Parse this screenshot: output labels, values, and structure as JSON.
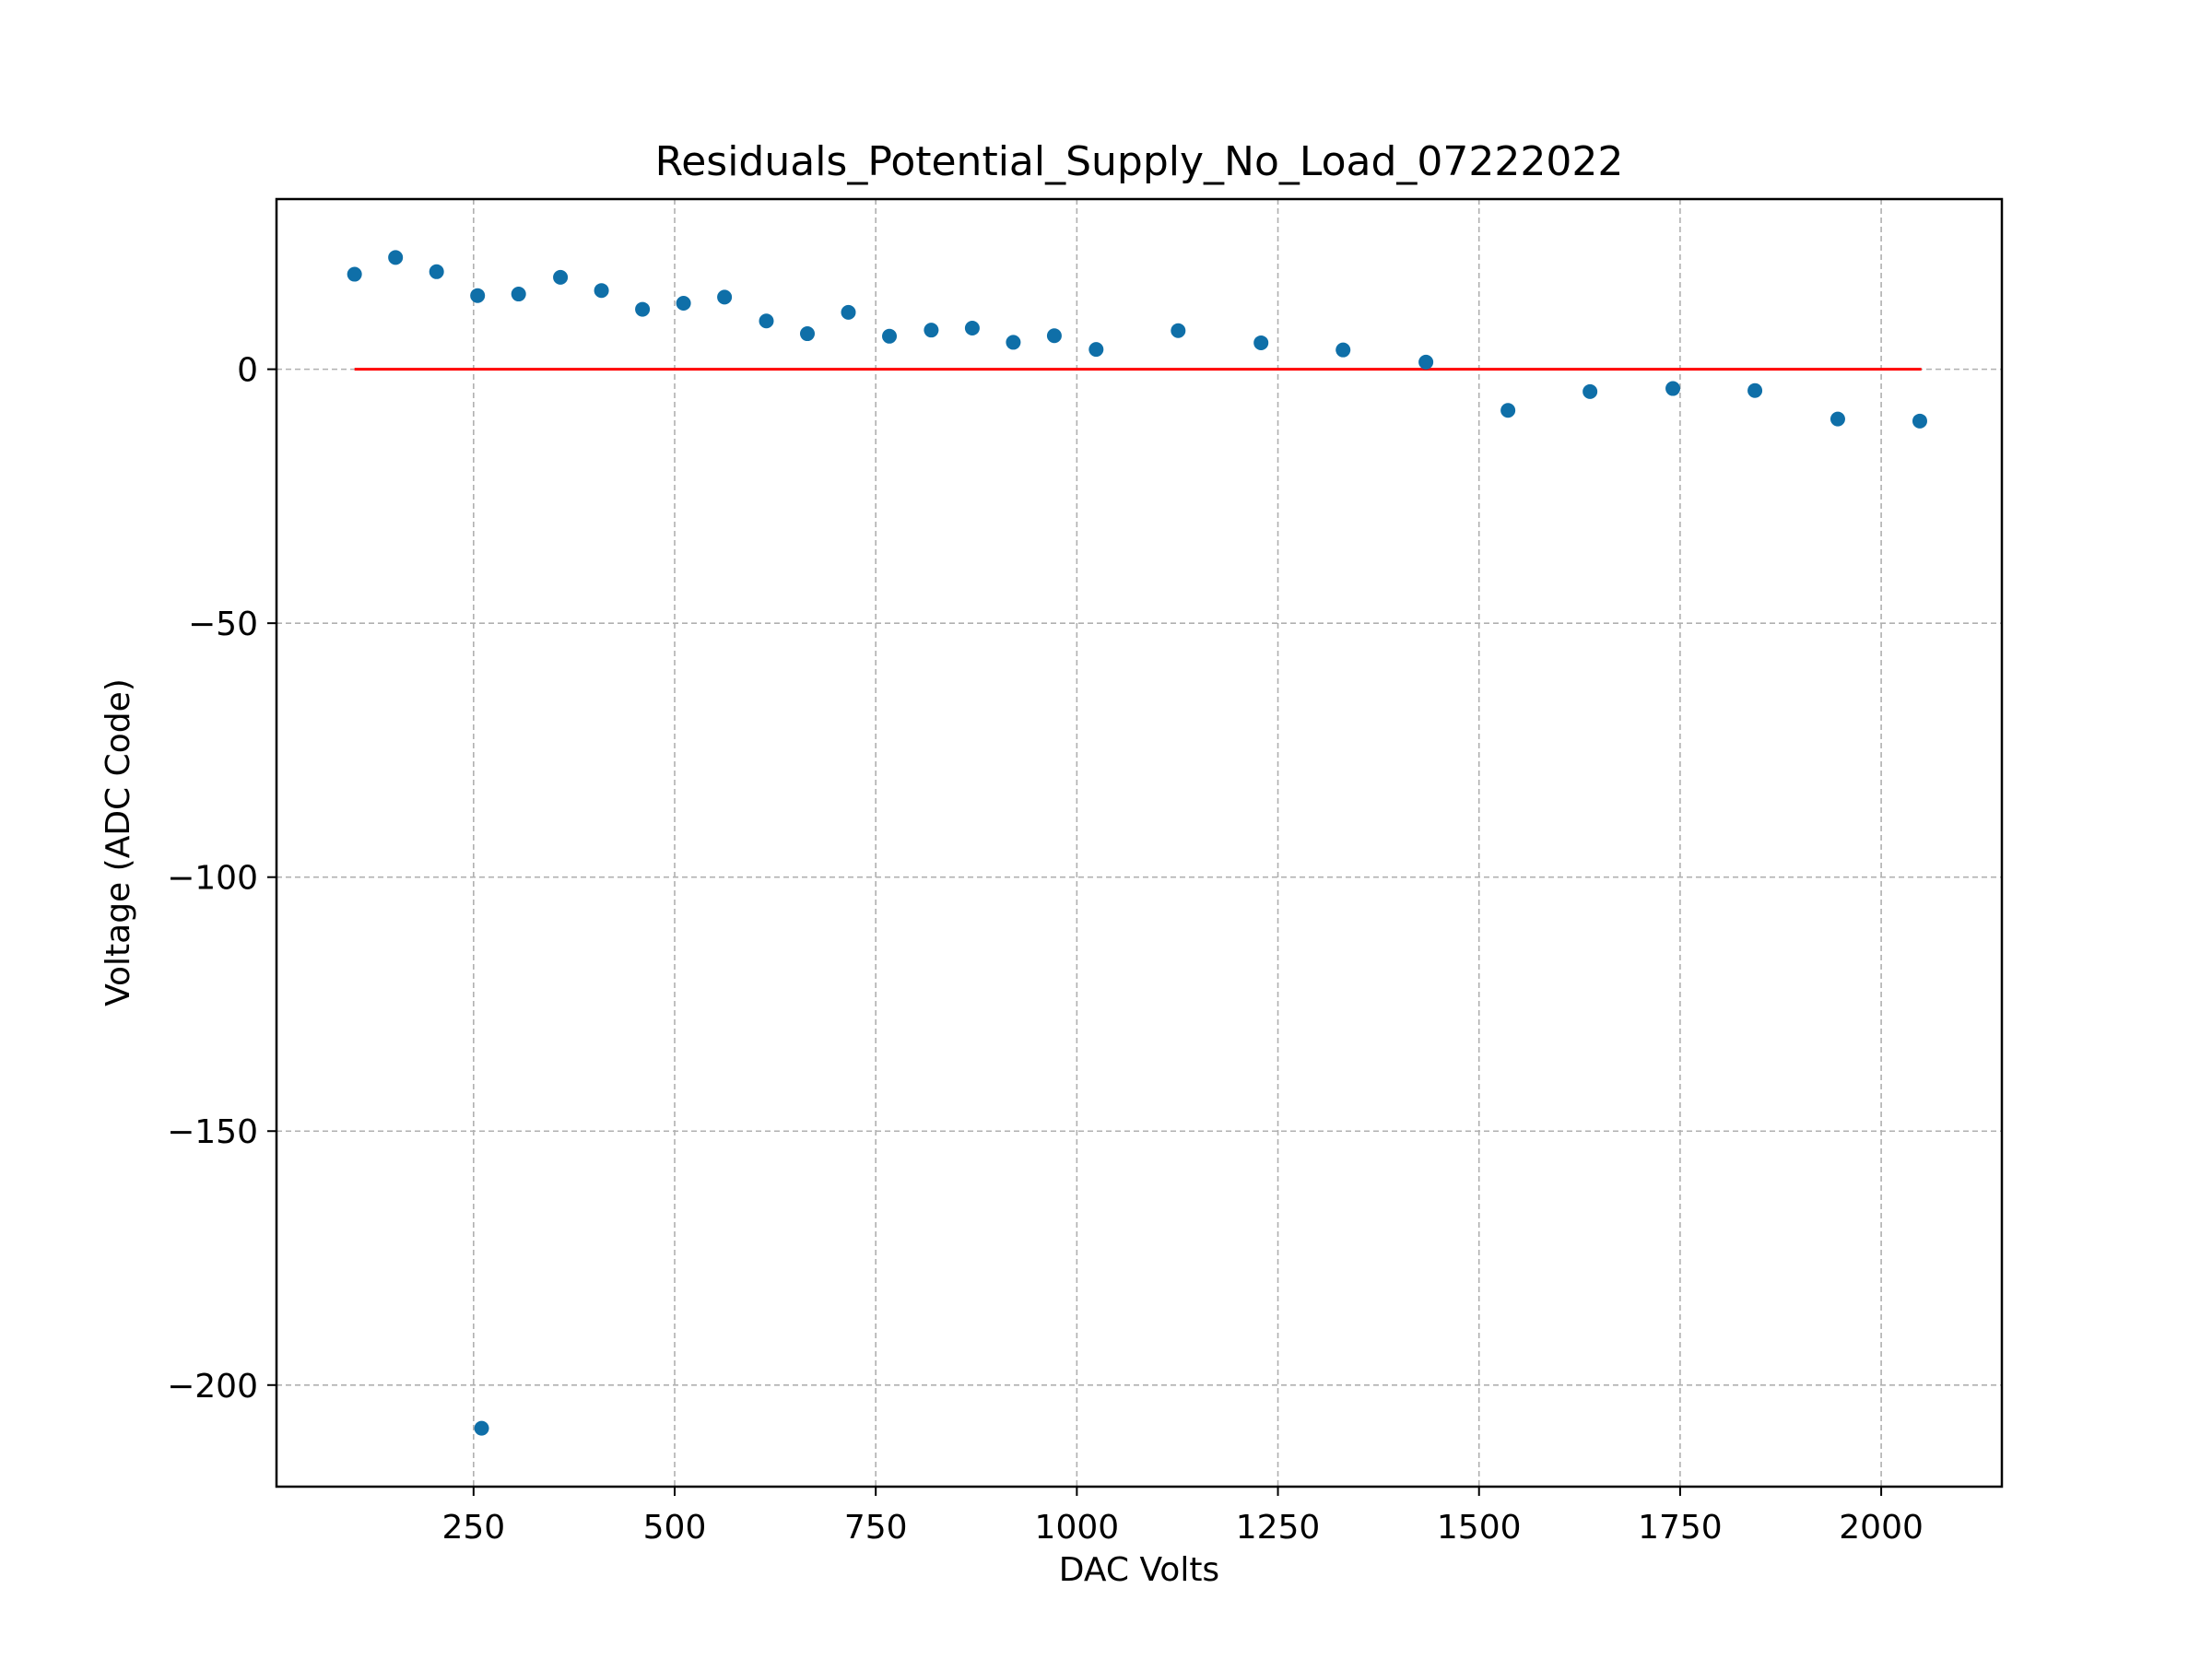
{
  "chart_data": {
    "type": "scatter",
    "title": "Residuals_Potential_Supply_No_Load_07222022",
    "xlabel": "DAC Volts",
    "ylabel": "Voltage (ADC Code)",
    "xlim": [
      5,
      2150
    ],
    "ylim": [
      -220,
      33.5
    ],
    "xticks": [
      250,
      500,
      750,
      1000,
      1250,
      1500,
      1750,
      2000
    ],
    "yticks": [
      0,
      -50,
      -100,
      -150,
      -200
    ],
    "xtick_labels": [
      "250",
      "500",
      "750",
      "1000",
      "1250",
      "1500",
      "1750",
      "2000"
    ],
    "ytick_labels": [
      "0",
      "−50",
      "−100",
      "−150",
      "−200"
    ],
    "grid": true,
    "colors": {
      "points": "#0f6fa8",
      "reference_line": "#ff0000",
      "grid": "#b0b0b0"
    },
    "reference_line": {
      "y": 0,
      "x_start": 102,
      "x_end": 2050
    },
    "series": [
      {
        "points": [
          [
            102,
            18.7
          ],
          [
            153,
            22.0
          ],
          [
            204,
            19.2
          ],
          [
            255,
            14.5
          ],
          [
            306,
            14.8
          ],
          [
            358,
            18.1
          ],
          [
            409,
            15.5
          ],
          [
            460,
            11.8
          ],
          [
            511,
            13.0
          ],
          [
            562,
            14.2
          ],
          [
            614,
            9.5
          ],
          [
            665,
            7.0
          ],
          [
            716,
            11.2
          ],
          [
            767,
            6.5
          ],
          [
            819,
            7.7
          ],
          [
            870,
            8.1
          ],
          [
            921,
            5.3
          ],
          [
            972,
            6.6
          ],
          [
            1024,
            3.9
          ],
          [
            1126,
            7.6
          ],
          [
            1229,
            5.2
          ],
          [
            1331,
            3.8
          ],
          [
            1434,
            1.4
          ],
          [
            1536,
            -8.1
          ],
          [
            1638,
            -4.4
          ],
          [
            1741,
            -3.8
          ],
          [
            1843,
            -4.2
          ],
          [
            1946,
            -9.8
          ],
          [
            2048,
            -10.2
          ],
          [
            260,
            -208.5
          ]
        ]
      }
    ]
  }
}
